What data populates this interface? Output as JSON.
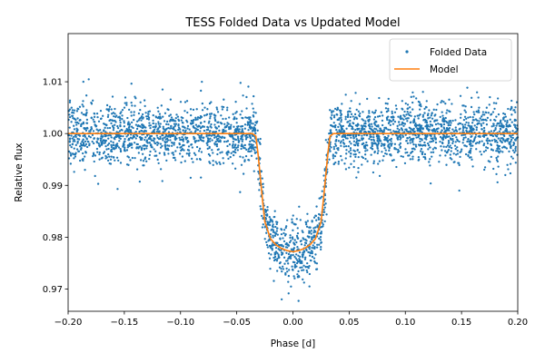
{
  "chart_data": {
    "type": "scatter",
    "title": "TESS Folded Data vs Updated Model",
    "xlabel": "Phase [d]",
    "ylabel": "Relative flux",
    "xlim": [
      -0.2,
      0.2
    ],
    "ylim": [
      0.9657,
      1.0193
    ],
    "x_ticks": [
      -0.2,
      -0.15,
      -0.1,
      -0.05,
      0.0,
      0.05,
      0.1,
      0.15,
      0.2
    ],
    "x_tick_labels": [
      "−0.20",
      "−0.15",
      "−0.10",
      "−0.05",
      "0.00",
      "0.05",
      "0.10",
      "0.15",
      "0.20"
    ],
    "y_ticks": [
      0.97,
      0.98,
      0.99,
      1.0,
      1.01
    ],
    "y_tick_labels": [
      "0.97",
      "0.98",
      "0.99",
      "1.00",
      "1.01"
    ],
    "grid": false,
    "legend_position": "top-right",
    "series": [
      {
        "name": "Folded Data",
        "kind": "scatter",
        "color": "#1f77b4",
        "point_count": 3200,
        "scatter_sigma": 0.0028,
        "outliers": [
          {
            "x": -0.116,
            "y": 1.0085
          },
          {
            "x": -0.035,
            "y": 1.0072
          },
          {
            "x": -0.156,
            "y": 0.9893
          },
          {
            "x": -0.047,
            "y": 0.9887
          },
          {
            "x": -0.01,
            "y": 0.968
          },
          {
            "x": 0.005,
            "y": 0.9677
          },
          {
            "x": 0.047,
            "y": 1.0075
          },
          {
            "x": 0.148,
            "y": 0.989
          },
          {
            "x": 0.182,
            "y": 0.9906
          },
          {
            "x": 0.066,
            "y": 1.0067
          },
          {
            "x": -0.081,
            "y": 1.01
          },
          {
            "x": -0.148,
            "y": 1.0055
          }
        ]
      },
      {
        "name": "Model",
        "kind": "line",
        "color": "#ff7f0e",
        "baseline": 1.0,
        "transit_depth_min": 0.9772,
        "x": [
          -0.2,
          -0.036,
          -0.033,
          -0.031,
          -0.029,
          -0.027,
          -0.025,
          -0.02,
          -0.015,
          -0.01,
          -0.005,
          0.0,
          0.005,
          0.01,
          0.015,
          0.02,
          0.025,
          0.027,
          0.029,
          0.031,
          0.033,
          0.036,
          0.2
        ],
        "y": [
          1.0,
          1.0,
          0.9995,
          0.996,
          0.9915,
          0.987,
          0.983,
          0.9797,
          0.9785,
          0.9778,
          0.9774,
          0.9772,
          0.9774,
          0.9778,
          0.9785,
          0.9797,
          0.983,
          0.987,
          0.9915,
          0.996,
          0.9995,
          1.0,
          1.0
        ]
      }
    ]
  }
}
